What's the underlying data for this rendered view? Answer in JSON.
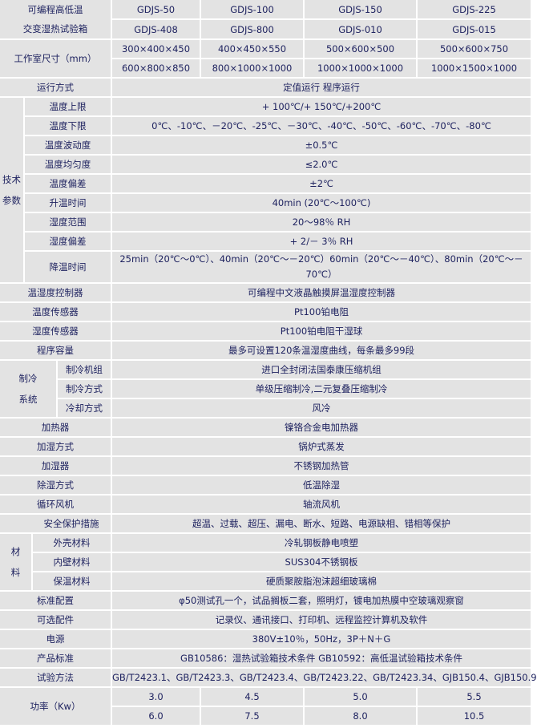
{
  "title_lines": [
    "可编程高低温",
    "交变湿热试验箱"
  ],
  "models": [
    "GDJS-50",
    "GDJS-100",
    "GDJS-150",
    "GDJS-225",
    "GDJS-408",
    "GDJS-800",
    "GDJS-010",
    "GDJS-015"
  ],
  "chamber_size": {
    "label": "工作室尺寸（mm）",
    "values": [
      "300×400×450",
      "400×450×550",
      "500×600×500",
      "500×600×750",
      "600×800×850",
      "800×1000×1000",
      "1000×1000×1000",
      "1000×1500×1000"
    ]
  },
  "operation": {
    "label": "运行方式",
    "value": "定值运行  程序运行"
  },
  "tech_params": {
    "group_label": [
      "技术",
      "参数"
    ],
    "rows": [
      {
        "label": "温度上限",
        "value": "+ 100℃/+ 150℃/+200℃"
      },
      {
        "label": "温度下限",
        "value": "0℃、-10℃、－20℃、-25℃、－30℃、-40℃、-50℃、-60℃、-70℃、-80℃"
      },
      {
        "label": "温度波动度",
        "value": "±0.5℃"
      },
      {
        "label": "温度均匀度",
        "value": "≤2.0℃"
      },
      {
        "label": "温度偏差",
        "value": "±2℃"
      },
      {
        "label": "升温时间",
        "value": "40min (20℃～100℃)"
      },
      {
        "label": "湿度范围",
        "value": "20～98％ RH"
      },
      {
        "label": "湿度偏差",
        "value": "+ 2/－ 3％ RH"
      },
      {
        "label": "降温时间",
        "value": "25min（20℃～0℃）、40min（20℃～－20℃）60min（20℃～－40℃）、80min（20℃～－70℃）"
      }
    ]
  },
  "rows_a": [
    {
      "label": "温湿度控制器",
      "value": "可编程中文液晶触摸屏温湿度控制器"
    },
    {
      "label": "温度传感器",
      "value": "Pt100铂电阻"
    },
    {
      "label": "湿度传感器",
      "value": "Pt100铂电阻干湿球"
    },
    {
      "label": "程序容量",
      "value": "最多可设置120条温湿度曲线，每条最多99段"
    }
  ],
  "refrigeration": {
    "group_label": [
      "制冷",
      "系统"
    ],
    "rows": [
      {
        "label": "制冷机组",
        "value": "进口全封闭法国泰康压缩机组"
      },
      {
        "label": "制冷方式",
        "value": "单级压缩制冷,二元复叠压缩制冷"
      },
      {
        "label": "冷却方式",
        "value": "风冷"
      }
    ]
  },
  "rows_b": [
    {
      "label": "加热器",
      "value": "镍铬合金电加热器"
    },
    {
      "label": "加湿方式",
      "value": "锅炉式蒸发"
    },
    {
      "label": "加湿器",
      "value": "不锈钢加热管"
    },
    {
      "label": "除湿方式",
      "value": "低温除湿"
    },
    {
      "label": "循环风机",
      "value": "轴流风机"
    },
    {
      "label": "安全保护措施",
      "value": "超温、过载、超压、漏电、断水、短路、电源缺相、错相等保护"
    }
  ],
  "materials": {
    "group_label": [
      "材",
      "料"
    ],
    "rows": [
      {
        "label": "外壳材料",
        "value": "冷轧钢板静电喷塑"
      },
      {
        "label": "内壁材料",
        "value": "SUS304不锈钢板"
      },
      {
        "label": "保温材料",
        "value": "硬质聚胺脂泡沫超细玻璃棉"
      }
    ]
  },
  "rows_c": [
    {
      "label": "标准配置",
      "value": "φ50测试孔一个，试品搁板二套，照明灯，镀电加热膜中空玻璃观察窗"
    },
    {
      "label": "可选配件",
      "value": "记录仪、通讯接口、打印机、远程监控计算机及软件"
    },
    {
      "label": "电源",
      "value": "380V±10％，50Hz，3P＋N＋G"
    },
    {
      "label": "产品标准",
      "value": "GB10586：湿热试验箱技术条件  GB10592：高低温试验箱技术条件"
    },
    {
      "label": "试验方法",
      "value": "GB/T2423.1、GB/T2423.3、GB/T2423.4、GB/T2423.22、GB/T2423.34、GJB150.4、GJB150.9"
    }
  ],
  "power": {
    "label": "功率（Kw）",
    "values": [
      "3.0",
      "4.5",
      "5.0",
      "5.5",
      "6.0",
      "7.5",
      "8.0",
      "10.5"
    ]
  },
  "colors": {
    "cell_bg": "#e3e3e3",
    "border": "#ffffff",
    "text": "#1f2360"
  }
}
